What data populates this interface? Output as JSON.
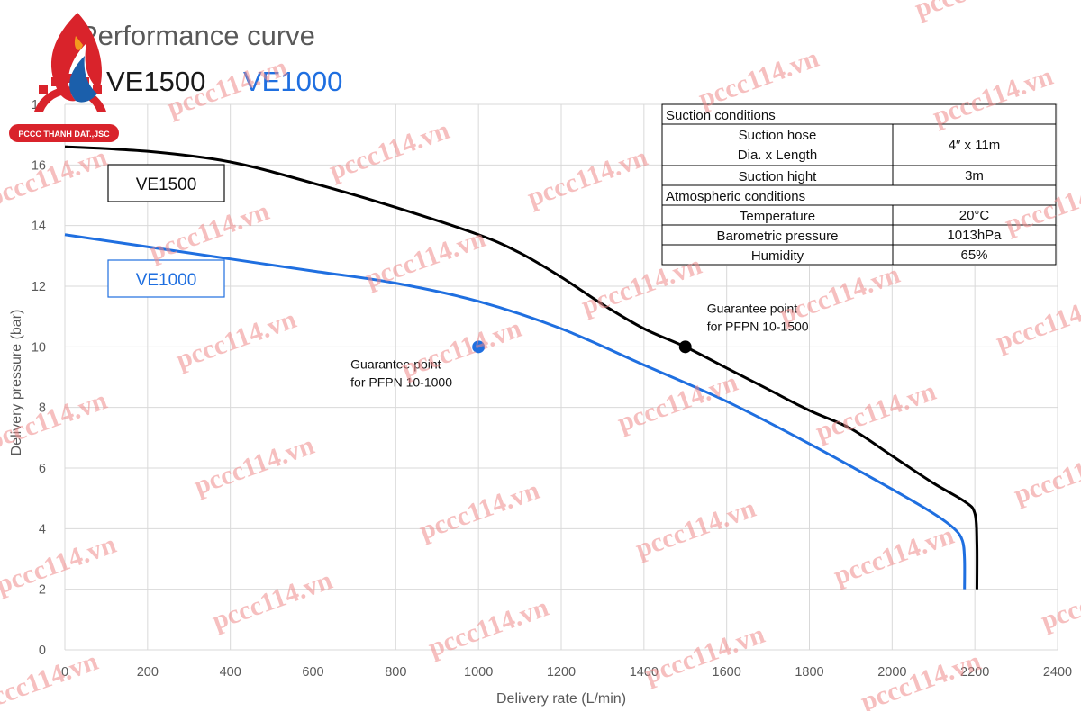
{
  "chart_data": {
    "type": "line",
    "title": "Performance curve",
    "models": [
      {
        "label": "VE1500",
        "color": "#1a1a1a"
      },
      {
        "label": "VE1000",
        "color": "#1f6fe0"
      }
    ],
    "xlabel": "Delivery rate (L/min)",
    "ylabel": "Delivery pressure (bar)",
    "xlim": [
      0,
      2400
    ],
    "ylim": [
      0,
      18
    ],
    "xticks": [
      0,
      200,
      400,
      600,
      800,
      1000,
      1200,
      1400,
      1600,
      1800,
      2000,
      2200,
      2400
    ],
    "yticks": [
      0,
      2,
      4,
      6,
      8,
      10,
      12,
      14,
      16,
      18
    ],
    "grid": true,
    "series": [
      {
        "name": "VE1500",
        "color": "#000000",
        "points": [
          [
            0,
            16.6
          ],
          [
            200,
            16.45
          ],
          [
            400,
            16.1
          ],
          [
            600,
            15.4
          ],
          [
            800,
            14.6
          ],
          [
            1000,
            13.7
          ],
          [
            1100,
            13.1
          ],
          [
            1200,
            12.3
          ],
          [
            1300,
            11.4
          ],
          [
            1400,
            10.6
          ],
          [
            1500,
            10.0
          ],
          [
            1600,
            9.3
          ],
          [
            1700,
            8.6
          ],
          [
            1800,
            7.9
          ],
          [
            1900,
            7.3
          ],
          [
            2000,
            6.4
          ],
          [
            2100,
            5.5
          ],
          [
            2175,
            4.9
          ],
          [
            2200,
            4.5
          ],
          [
            2205,
            3.5
          ],
          [
            2205,
            2.0
          ]
        ]
      },
      {
        "name": "VE1000",
        "color": "#1f6fe0",
        "points": [
          [
            0,
            13.7
          ],
          [
            200,
            13.3
          ],
          [
            400,
            12.9
          ],
          [
            600,
            12.5
          ],
          [
            800,
            12.1
          ],
          [
            1000,
            11.5
          ],
          [
            1200,
            10.6
          ],
          [
            1400,
            9.4
          ],
          [
            1600,
            8.2
          ],
          [
            1800,
            6.8
          ],
          [
            2000,
            5.3
          ],
          [
            2100,
            4.5
          ],
          [
            2150,
            4.0
          ],
          [
            2170,
            3.6
          ],
          [
            2175,
            3.0
          ],
          [
            2175,
            2.0
          ]
        ]
      }
    ],
    "legend": [
      {
        "label": "VE1500",
        "color": "#111111"
      },
      {
        "label": "VE1000",
        "color": "#1f6fe0"
      }
    ],
    "points": [
      {
        "x": 1000,
        "y": 10,
        "color": "#1f6fe0",
        "label_lines": [
          "Guarantee point",
          "for PFPN 10-1000"
        ]
      },
      {
        "x": 1500,
        "y": 10,
        "color": "#000000",
        "label_lines": [
          "Guarantee point",
          "for PFPN 10-1500"
        ]
      }
    ],
    "conditions_table": {
      "sections": [
        {
          "header": "Suction conditions",
          "rows": [
            {
              "label_lines": [
                "Suction hose",
                "Dia. x Length"
              ],
              "value": "4″ x 11m"
            },
            {
              "label_lines": [
                "Suction hight"
              ],
              "value": "3m"
            }
          ]
        },
        {
          "header": "Atmospheric conditions",
          "rows": [
            {
              "label_lines": [
                "Temperature"
              ],
              "value": "20°C"
            },
            {
              "label_lines": [
                "Barometric pressure"
              ],
              "value": "1013hPa"
            },
            {
              "label_lines": [
                "Humidity"
              ],
              "value": "65%"
            }
          ]
        }
      ]
    }
  },
  "logo": {
    "text": "PCCC THANH DAT.,JSC",
    "colors": {
      "red": "#d9232b",
      "blue": "#1b5fab",
      "orange": "#f39a1e"
    }
  },
  "watermark": {
    "text": "pccc114.vn"
  }
}
